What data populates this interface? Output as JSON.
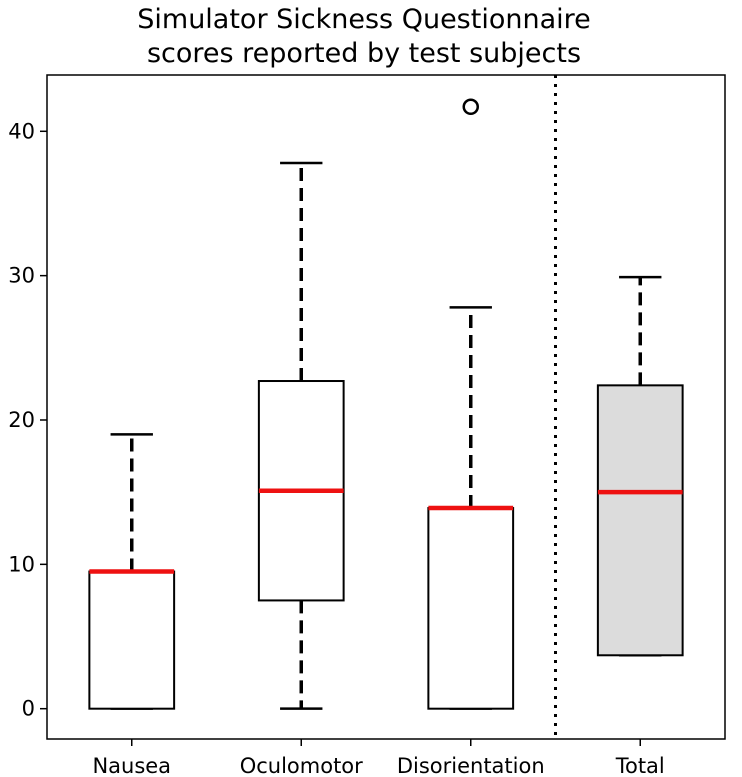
{
  "chart_data": {
    "type": "box",
    "title_lines": [
      "Simulator Sickness Questionnaire",
      "scores reported by test subjects"
    ],
    "categories": [
      "Nausea",
      "Oculomotor",
      "Disorientation",
      "Total"
    ],
    "boxes": [
      {
        "name": "Nausea",
        "whisker_low": 0,
        "q1": 0,
        "median": 9.5,
        "q3": 9.5,
        "whisker_high": 19,
        "outliers": [],
        "fill": "#ffffff"
      },
      {
        "name": "Oculomotor",
        "whisker_low": 0,
        "q1": 7.5,
        "median": 15.1,
        "q3": 22.7,
        "whisker_high": 37.8,
        "outliers": [],
        "fill": "#ffffff"
      },
      {
        "name": "Disorientation",
        "whisker_low": 0,
        "q1": 0,
        "median": 13.9,
        "q3": 13.9,
        "whisker_high": 27.8,
        "outliers": [
          41.7
        ],
        "fill": "#ffffff"
      },
      {
        "name": "Total",
        "whisker_low": 3.7,
        "q1": 3.7,
        "median": 15.0,
        "q3": 22.4,
        "whisker_high": 29.9,
        "outliers": [],
        "fill": "#dcdcdc"
      }
    ],
    "yticks": [
      0,
      10,
      20,
      30,
      40
    ],
    "ylim": [
      -2.1,
      43.9
    ],
    "median_color": "#ee1111",
    "separator": {
      "between": [
        "Disorientation",
        "Total"
      ],
      "style": "dotted"
    },
    "grid": false,
    "legend": "none"
  }
}
